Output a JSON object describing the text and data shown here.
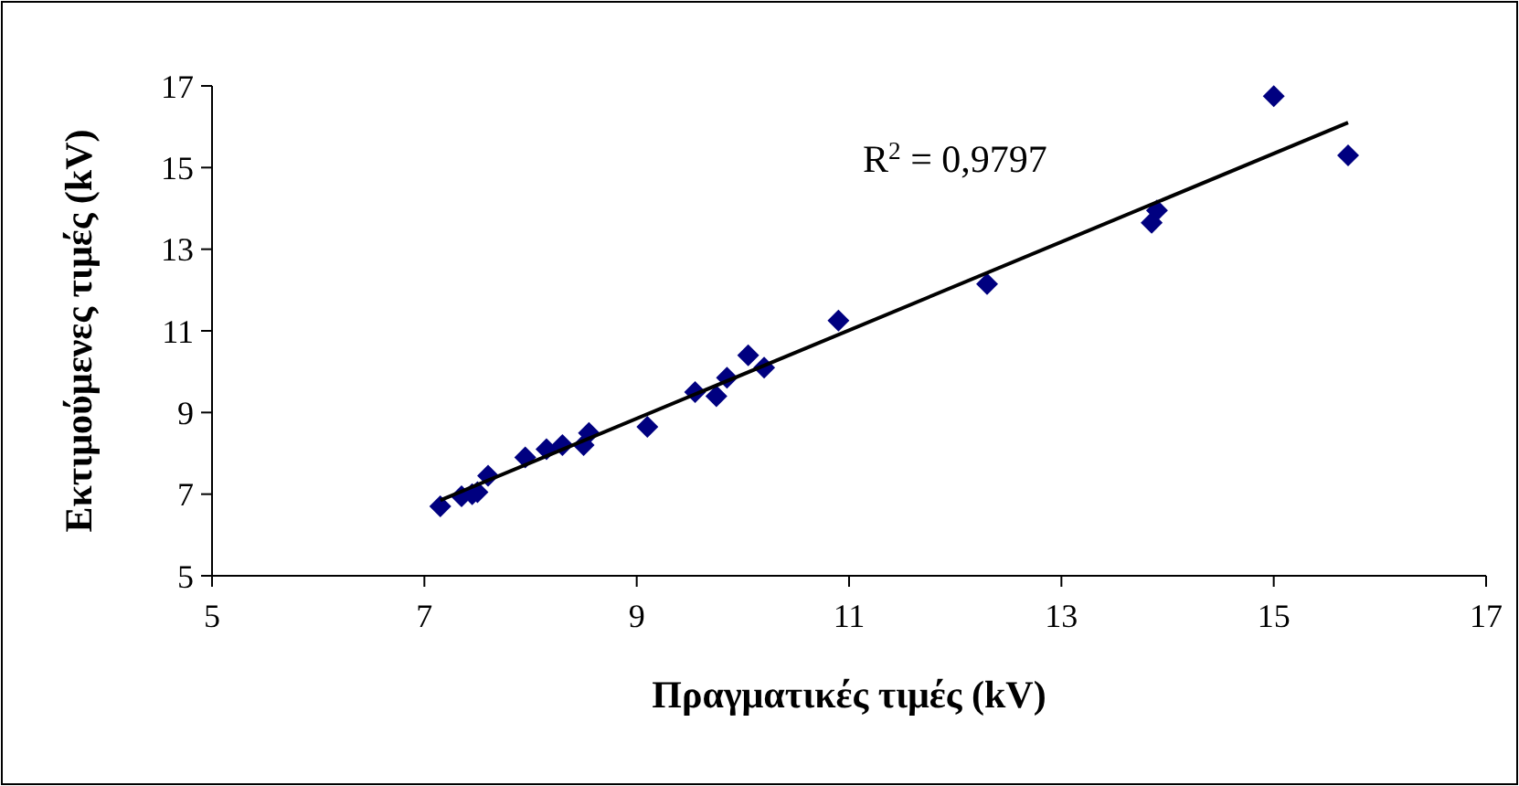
{
  "chart_data": {
    "type": "scatter",
    "xlabel": "Πραγματικές τιμές (kV)",
    "ylabel": "Εκτιμούμενες τιμές (kV)",
    "xlim": [
      5,
      17
    ],
    "ylim": [
      5,
      17
    ],
    "xticks": [
      5,
      7,
      9,
      11,
      13,
      15,
      17
    ],
    "yticks": [
      5,
      7,
      9,
      11,
      13,
      15,
      17
    ],
    "grid": false,
    "marker": "diamond",
    "annotations": [
      "R$^{2}$ = 0,9797"
    ],
    "series": [
      {
        "color": "#000080",
        "x": [
          7.15,
          7.35,
          7.45,
          7.5,
          7.6,
          7.95,
          8.15,
          8.3,
          8.5,
          8.55,
          9.1,
          9.55,
          9.75,
          9.85,
          10.05,
          10.2,
          10.9,
          12.3,
          13.85,
          13.9,
          15.0,
          15.7
        ],
        "values": [
          6.7,
          6.95,
          7.0,
          7.05,
          7.45,
          7.9,
          8.1,
          8.2,
          8.2,
          8.5,
          8.65,
          9.5,
          9.4,
          9.85,
          10.4,
          10.1,
          11.25,
          12.15,
          13.65,
          13.95,
          16.75,
          15.3
        ]
      },
      {
        "type": "line",
        "color": "#000000",
        "marker": "none",
        "line_style": "solid",
        "x": [
          7.15,
          15.7
        ],
        "values": [
          6.85,
          16.1
        ]
      }
    ]
  }
}
